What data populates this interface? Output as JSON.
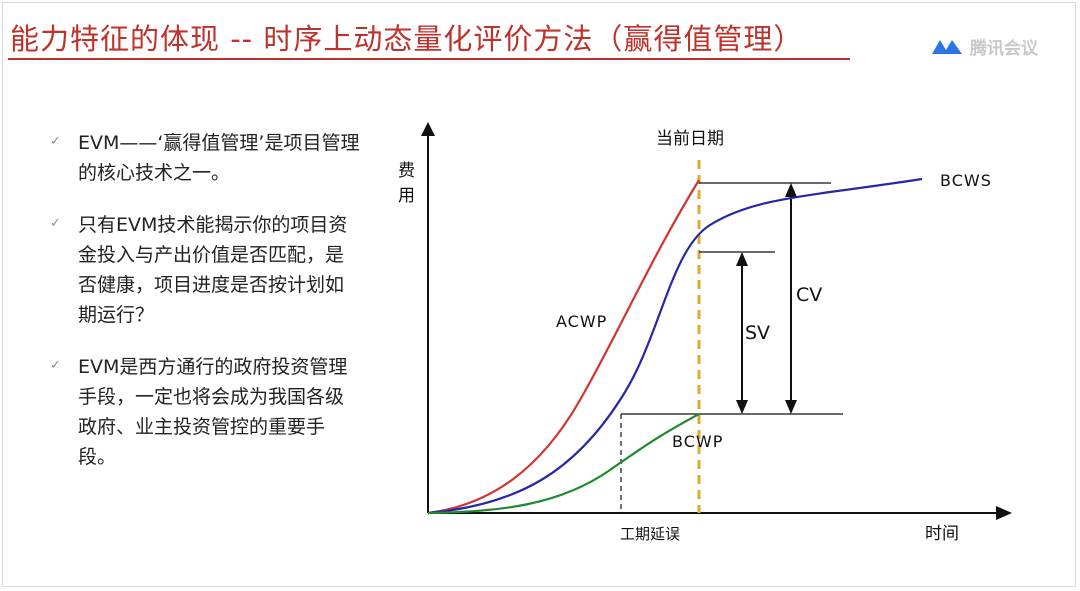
{
  "slide": {
    "title": "能力特征的体现  -- 时序上动态量化评价方法（赢得值管理）",
    "logo_text": "腾讯会议",
    "bullets": [
      "EVM——‘赢得值管理’是项目管理的核心技术之一。",
      "只有EVM技术能揭示你的项目资金投入与产出价值是否匹配，是否健康，项目进度是否按计划如期运行？",
      "EVM是西方通行的政府投资管理手段，一定也将会成为我国各级政府、业主投资管控的重要手段。"
    ]
  },
  "diagram": {
    "y_axis_label": "费用",
    "x_axis_label": "时间",
    "current_date_label": "当前日期",
    "delay_label": "工期延误",
    "labels": {
      "bcws": "BCWS",
      "acwp": "ACWP",
      "bcwp": "BCWP",
      "sv": "SV",
      "cv": "CV"
    },
    "colors": {
      "acwp": "#d0342c",
      "bcws": "#2626a8",
      "bcwp": "#1e8a2e",
      "current_date_line": "#e0a82e",
      "title_red": "#c0312b"
    }
  }
}
